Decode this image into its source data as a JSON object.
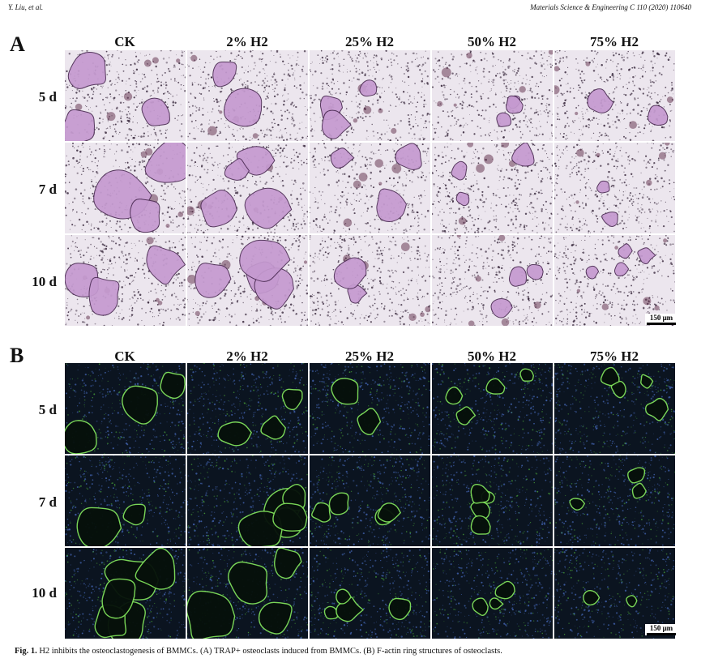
{
  "header": {
    "left": "Y. Liu, et al.",
    "right": "Materials Science & Engineering C 110 (2020) 110640"
  },
  "panel_a": {
    "letter": "A",
    "columns": [
      "CK",
      "2% H2",
      "25% H2",
      "50% H2",
      "75% H2"
    ],
    "rows": [
      "5 d",
      "7 d",
      "10 d"
    ],
    "scale_bar": "150 μm"
  },
  "panel_b": {
    "letter": "B",
    "columns": [
      "CK",
      "2% H2",
      "25% H2",
      "50% H2",
      "75% H2"
    ],
    "rows": [
      "5 d",
      "7 d",
      "10 d"
    ],
    "scale_bar": "150 μm"
  },
  "caption": {
    "label": "Fig. 1.",
    "text": "H2 inhibits the osteoclastogenesis of BMMCs. (A) TRAP+ osteoclasts induced from BMMCs. (B) F-actin ring structures of osteoclasts."
  },
  "colors": {
    "trap_bg": "#ece6ee",
    "trap_cell": "#c59ad0",
    "trap_dots": "#3a2a3e",
    "fluor_bg": "#0b1420",
    "fluor_ring": "#7fe05a",
    "fluor_nuclei": "#3f5fa8"
  }
}
